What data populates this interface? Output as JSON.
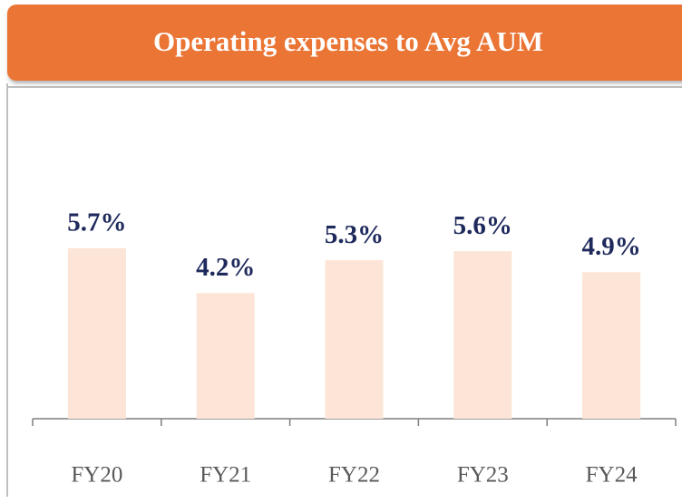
{
  "chart_data": {
    "type": "bar",
    "title": "Operating expenses to Avg AUM",
    "categories": [
      "FY20",
      "FY21",
      "FY22",
      "FY23",
      "FY24"
    ],
    "values": [
      5.7,
      4.2,
      5.3,
      5.6,
      4.9
    ],
    "value_labels": [
      "5.7%",
      "4.2%",
      "5.3%",
      "5.6%",
      "4.9%"
    ],
    "color": "#fce4d6",
    "ylim": [
      0,
      7
    ]
  }
}
